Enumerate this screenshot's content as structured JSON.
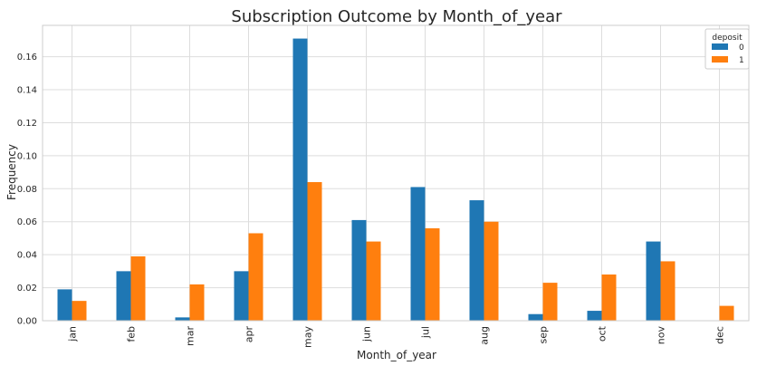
{
  "chart_data": {
    "type": "bar",
    "title": "Subscription Outcome by Month_of_year",
    "xlabel": "Month_of_year",
    "ylabel": "Frequency",
    "categories": [
      "jan",
      "feb",
      "mar",
      "apr",
      "may",
      "jun",
      "jul",
      "aug",
      "sep",
      "oct",
      "nov",
      "dec"
    ],
    "series": [
      {
        "name": "0",
        "color": "#1f77b4",
        "values": [
          0.019,
          0.03,
          0.002,
          0.03,
          0.171,
          0.061,
          0.081,
          0.073,
          0.004,
          0.006,
          0.048,
          0.0
        ]
      },
      {
        "name": "1",
        "color": "#ff7f0e",
        "values": [
          0.012,
          0.039,
          0.022,
          0.053,
          0.084,
          0.048,
          0.056,
          0.06,
          0.023,
          0.028,
          0.036,
          0.009
        ]
      }
    ],
    "ylim": [
      0,
      0.179
    ],
    "yticks": [
      0.0,
      0.02,
      0.04,
      0.06,
      0.08,
      0.1,
      0.12,
      0.14,
      0.16
    ],
    "ytick_labels": [
      "0.00",
      "0.02",
      "0.04",
      "0.06",
      "0.08",
      "0.10",
      "0.12",
      "0.14",
      "0.16"
    ],
    "grid": true,
    "legend": {
      "title": "deposit",
      "placement": "top-right"
    }
  }
}
